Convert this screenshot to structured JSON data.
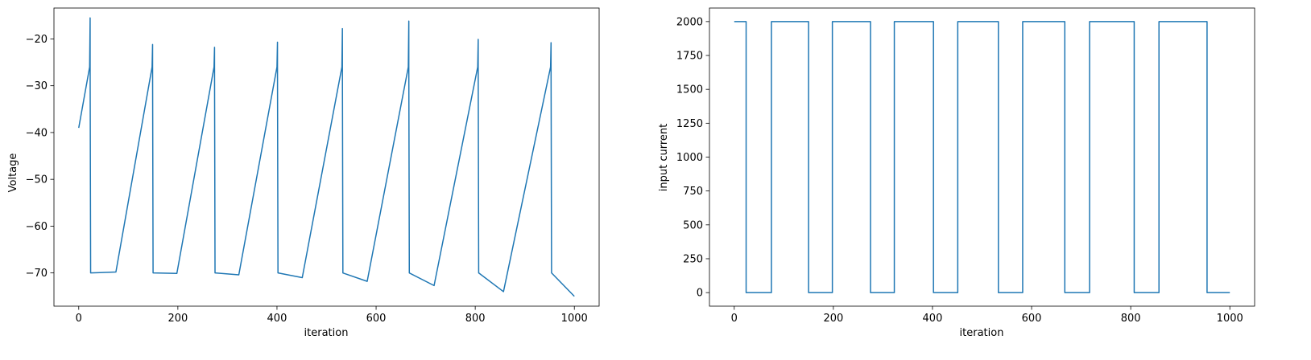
{
  "chart_data": [
    {
      "type": "line",
      "title": "",
      "xlabel": "iteration",
      "ylabel": "Voltage",
      "xlim": [
        -50,
        1050
      ],
      "ylim": [
        -77.1,
        -13.4
      ],
      "xticks": [
        0,
        200,
        400,
        600,
        800,
        1000
      ],
      "yticks": [
        -70,
        -60,
        -50,
        -40,
        -30,
        -20
      ],
      "grid": false,
      "color": "#1f77b4",
      "series": [
        {
          "x": [
            0,
            22,
            23,
            23,
            24,
            75,
            148,
            149,
            149,
            150,
            198,
            273,
            274,
            274,
            275,
            323,
            400,
            401,
            401,
            402,
            451,
            531,
            532,
            532,
            533,
            582,
            665,
            666,
            666,
            667,
            717,
            805,
            806,
            806,
            807,
            857,
            952,
            953,
            953,
            954,
            1000
          ],
          "y": [
            -39,
            -26,
            -15.5,
            -26,
            -70,
            -69.8,
            -26,
            -21.2,
            -26,
            -70,
            -70.1,
            -26,
            -21.8,
            -26,
            -70,
            -70.4,
            -26,
            -20.7,
            -26,
            -70,
            -71,
            -26,
            -17.8,
            -26,
            -70,
            -71.8,
            -26,
            -16.2,
            -26,
            -70,
            -72.7,
            -26,
            -20.1,
            -26,
            -70,
            -74,
            -26,
            -20.8,
            -26,
            -70,
            -75
          ]
        }
      ]
    },
    {
      "type": "line",
      "title": "",
      "xlabel": "iteration",
      "ylabel": "input current",
      "xlim": [
        -50,
        1050
      ],
      "ylim": [
        -100,
        2100
      ],
      "xticks": [
        0,
        200,
        400,
        600,
        800,
        1000
      ],
      "yticks": [
        0,
        250,
        500,
        750,
        1000,
        1250,
        1500,
        1750,
        2000
      ],
      "grid": false,
      "color": "#1f77b4",
      "series": [
        {
          "x": [
            0,
            24,
            24,
            75,
            75,
            150,
            150,
            198,
            198,
            275,
            275,
            323,
            323,
            402,
            402,
            451,
            451,
            533,
            533,
            582,
            582,
            667,
            667,
            717,
            717,
            807,
            807,
            857,
            857,
            954,
            954,
            1000
          ],
          "y": [
            2000,
            2000,
            0,
            0,
            2000,
            2000,
            0,
            0,
            2000,
            2000,
            0,
            0,
            2000,
            2000,
            0,
            0,
            2000,
            2000,
            0,
            0,
            2000,
            2000,
            0,
            0,
            2000,
            2000,
            0,
            0,
            2000,
            2000,
            0,
            0
          ]
        }
      ]
    }
  ]
}
